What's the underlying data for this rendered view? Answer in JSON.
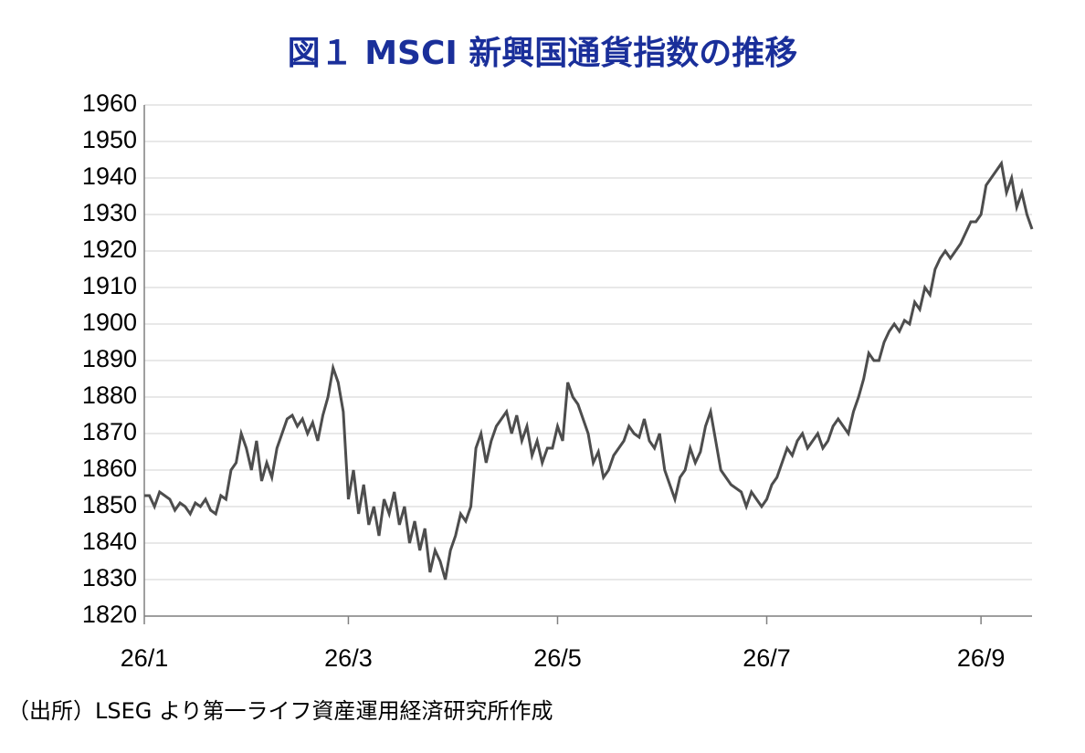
{
  "chart_data": {
    "type": "line",
    "title": "図１ MSCI 新興国通貨指数の推移",
    "note": "（出所）LSEG より第一ライフ資産運用経済研究所作成",
    "color": "#4d4d4d",
    "grid": true,
    "ylim": [
      1820,
      1960
    ],
    "yticks": [
      1820,
      1830,
      1840,
      1850,
      1860,
      1870,
      1880,
      1890,
      1900,
      1910,
      1920,
      1930,
      1940,
      1950,
      1960
    ],
    "categories": [
      "26/1",
      null,
      null,
      null,
      null,
      null,
      null,
      null,
      null,
      null,
      null,
      null,
      null,
      null,
      null,
      null,
      null,
      null,
      null,
      null,
      null,
      null,
      null,
      null,
      null,
      null,
      null,
      null,
      null,
      null,
      null,
      null,
      null,
      null,
      null,
      null,
      null,
      null,
      null,
      null,
      "26/3",
      null,
      null,
      null,
      null,
      null,
      null,
      null,
      null,
      null,
      null,
      null,
      null,
      null,
      null,
      null,
      null,
      null,
      null,
      null,
      null,
      null,
      null,
      null,
      null,
      null,
      null,
      null,
      null,
      null,
      null,
      null,
      null,
      null,
      null,
      null,
      null,
      null,
      null,
      null,
      null,
      "26/5",
      null,
      null,
      null,
      null,
      null,
      null,
      null,
      null,
      null,
      null,
      null,
      null,
      null,
      null,
      null,
      null,
      null,
      null,
      null,
      null,
      null,
      null,
      null,
      null,
      null,
      null,
      null,
      null,
      null,
      null,
      null,
      null,
      null,
      null,
      null,
      null,
      null,
      null,
      null,
      null,
      "26/7",
      null,
      null,
      null,
      null,
      null,
      null,
      null,
      null,
      null,
      null,
      null,
      null,
      null,
      null,
      null,
      null,
      null,
      null,
      null,
      null,
      null,
      null,
      null,
      null,
      null,
      null,
      null,
      null,
      null,
      null,
      null,
      null,
      null,
      null,
      null,
      null,
      null,
      null,
      null,
      null,
      null,
      "26/9",
      null,
      null,
      null,
      null,
      null,
      null,
      null,
      null,
      null,
      null
    ],
    "values": [
      1853,
      1853,
      1850,
      1854,
      1853,
      1852,
      1849,
      1851,
      1850,
      1848,
      1851,
      1850,
      1852,
      1849,
      1848,
      1853,
      1852,
      1860,
      1862,
      1870,
      1866,
      1860,
      1868,
      1857,
      1862,
      1858,
      1866,
      1870,
      1874,
      1875,
      1872,
      1874,
      1870,
      1873,
      1868,
      1875,
      1880,
      1888,
      1884,
      1876,
      1852,
      1860,
      1848,
      1856,
      1845,
      1850,
      1842,
      1852,
      1848,
      1854,
      1845,
      1850,
      1840,
      1846,
      1838,
      1844,
      1832,
      1838,
      1835,
      1830,
      1838,
      1842,
      1848,
      1846,
      1850,
      1866,
      1870,
      1862,
      1868,
      1872,
      1874,
      1876,
      1870,
      1875,
      1868,
      1872,
      1864,
      1868,
      1862,
      1866,
      1866,
      1872,
      1868,
      1884,
      1880,
      1878,
      1874,
      1870,
      1862,
      1865,
      1858,
      1860,
      1864,
      1866,
      1868,
      1872,
      1870,
      1869,
      1874,
      1868,
      1866,
      1870,
      1860,
      1856,
      1852,
      1858,
      1860,
      1866,
      1862,
      1865,
      1872,
      1876,
      1868,
      1860,
      1858,
      1856,
      1855,
      1854,
      1850,
      1854,
      1852,
      1850,
      1852,
      1856,
      1858,
      1862,
      1866,
      1864,
      1868,
      1870,
      1866,
      1868,
      1870,
      1866,
      1868,
      1872,
      1874,
      1872,
      1870,
      1876,
      1880,
      1885,
      1892,
      1890,
      1890,
      1895,
      1898,
      1900,
      1898,
      1901,
      1900,
      1906,
      1904,
      1910,
      1908,
      1915,
      1918,
      1920,
      1918,
      1920,
      1922,
      1925,
      1928,
      1928,
      1930,
      1938,
      1940,
      1942,
      1944,
      1936,
      1940,
      1932,
      1936,
      1930,
      1926
    ]
  }
}
